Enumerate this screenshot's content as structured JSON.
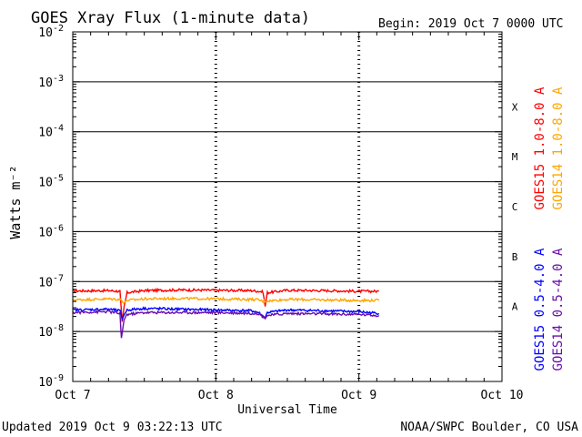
{
  "header": {
    "title": "GOES Xray Flux (1-minute data)",
    "begin": "Begin:  2019 Oct 7 0000 UTC"
  },
  "footer": {
    "updated": "Updated 2019 Oct  9 03:22:13 UTC",
    "credit": "NOAA/SWPC Boulder, CO USA"
  },
  "chart_data": {
    "type": "line",
    "title": "GOES Xray Flux (1-minute data)",
    "xlabel": "Universal Time",
    "ylabel": "Watts m⁻²",
    "yscale": "log",
    "x_unit": "days since 2019 Oct 7 0000 UTC",
    "xlim": [
      0,
      3
    ],
    "ylim": [
      1e-09,
      0.01
    ],
    "x_ticks": [
      {
        "x": 0,
        "label": "Oct 7"
      },
      {
        "x": 1,
        "label": "Oct 8"
      },
      {
        "x": 2,
        "label": "Oct 9"
      },
      {
        "x": 3,
        "label": "Oct 10"
      }
    ],
    "y_ticks": [
      {
        "base": "10",
        "exp": "-9",
        "value": 1e-09
      },
      {
        "base": "10",
        "exp": "-8",
        "value": 1e-08
      },
      {
        "base": "10",
        "exp": "-7",
        "value": 1e-07
      },
      {
        "base": "10",
        "exp": "-6",
        "value": 1e-06
      },
      {
        "base": "10",
        "exp": "-5",
        "value": 1e-05
      },
      {
        "base": "10",
        "exp": "-4",
        "value": 0.0001
      },
      {
        "base": "10",
        "exp": "-3",
        "value": 0.001
      },
      {
        "base": "10",
        "exp": "-2",
        "value": 0.01
      }
    ],
    "flare_classes": [
      {
        "label": "A",
        "low": 1e-08,
        "high": 1e-07
      },
      {
        "label": "B",
        "low": 1e-07,
        "high": 1e-06
      },
      {
        "label": "C",
        "low": 1e-06,
        "high": 1e-05
      },
      {
        "label": "M",
        "low": 1e-05,
        "high": 0.0001
      },
      {
        "label": "X",
        "low": 0.0001,
        "high": 0.001
      }
    ],
    "grid": "horizontal lines at 1e-8 through 1e-3 and dotted vertical day lines",
    "legend_placement": "right, vertical",
    "series": [
      {
        "name": "GOES15 1.0-8.0 A",
        "color": "#ff0000",
        "x": [
          0,
          0.25,
          0.33,
          0.345,
          0.36,
          0.38,
          0.5,
          0.75,
          1.0,
          1.25,
          1.3,
          1.33,
          1.345,
          1.36,
          1.5,
          1.75,
          2.0,
          2.14
        ],
        "y": [
          6.5e-08,
          6.6e-08,
          6.4e-08,
          1.5e-08,
          3.2e-08,
          6e-08,
          6.6e-08,
          6.8e-08,
          6.7e-08,
          6.6e-08,
          6.4e-08,
          6.2e-08,
          3.2e-08,
          6e-08,
          6.7e-08,
          6.6e-08,
          6.4e-08,
          6.4e-08
        ]
      },
      {
        "name": "GOES14 1.0-8.0 A",
        "color": "#ffa500",
        "x": [
          0,
          0.25,
          0.33,
          0.36,
          0.38,
          0.5,
          0.75,
          1.0,
          1.25,
          1.3,
          1.33,
          1.36,
          1.5,
          1.75,
          2.0,
          2.14
        ],
        "y": [
          4.3e-08,
          4.5e-08,
          4.4e-08,
          3.8e-08,
          4.2e-08,
          4.5e-08,
          4.6e-08,
          4.5e-08,
          4.4e-08,
          4.3e-08,
          4e-08,
          4.1e-08,
          4.4e-08,
          4.3e-08,
          4.2e-08,
          4.2e-08
        ]
      },
      {
        "name": "GOES15 0.5-4.0 A",
        "color": "#0000ff",
        "x": [
          0,
          0.25,
          0.33,
          0.345,
          0.36,
          0.38,
          0.5,
          0.75,
          1.0,
          1.25,
          1.3,
          1.33,
          1.345,
          1.36,
          1.5,
          1.75,
          2.0,
          2.14
        ],
        "y": [
          2.7e-08,
          2.8e-08,
          2.6e-08,
          1.8e-08,
          2.2e-08,
          2.7e-08,
          2.9e-08,
          2.8e-08,
          2.7e-08,
          2.6e-08,
          2.4e-08,
          2e-08,
          1.9e-08,
          2.4e-08,
          2.7e-08,
          2.6e-08,
          2.5e-08,
          2.3e-08
        ]
      },
      {
        "name": "GOES14 0.5-4.0 A",
        "color": "#6a0dad",
        "x": [
          0,
          0.25,
          0.33,
          0.34,
          0.36,
          0.38,
          0.5,
          1.0,
          1.3,
          1.33,
          1.345,
          1.36,
          1.5,
          2.0,
          2.14
        ],
        "y": [
          2.4e-08,
          2.5e-08,
          2.3e-08,
          7e-09,
          1.8e-08,
          2.2e-08,
          2.4e-08,
          2.4e-08,
          2.3e-08,
          2e-08,
          1.9e-08,
          2.1e-08,
          2.3e-08,
          2.2e-08,
          2.1e-08
        ]
      }
    ]
  }
}
